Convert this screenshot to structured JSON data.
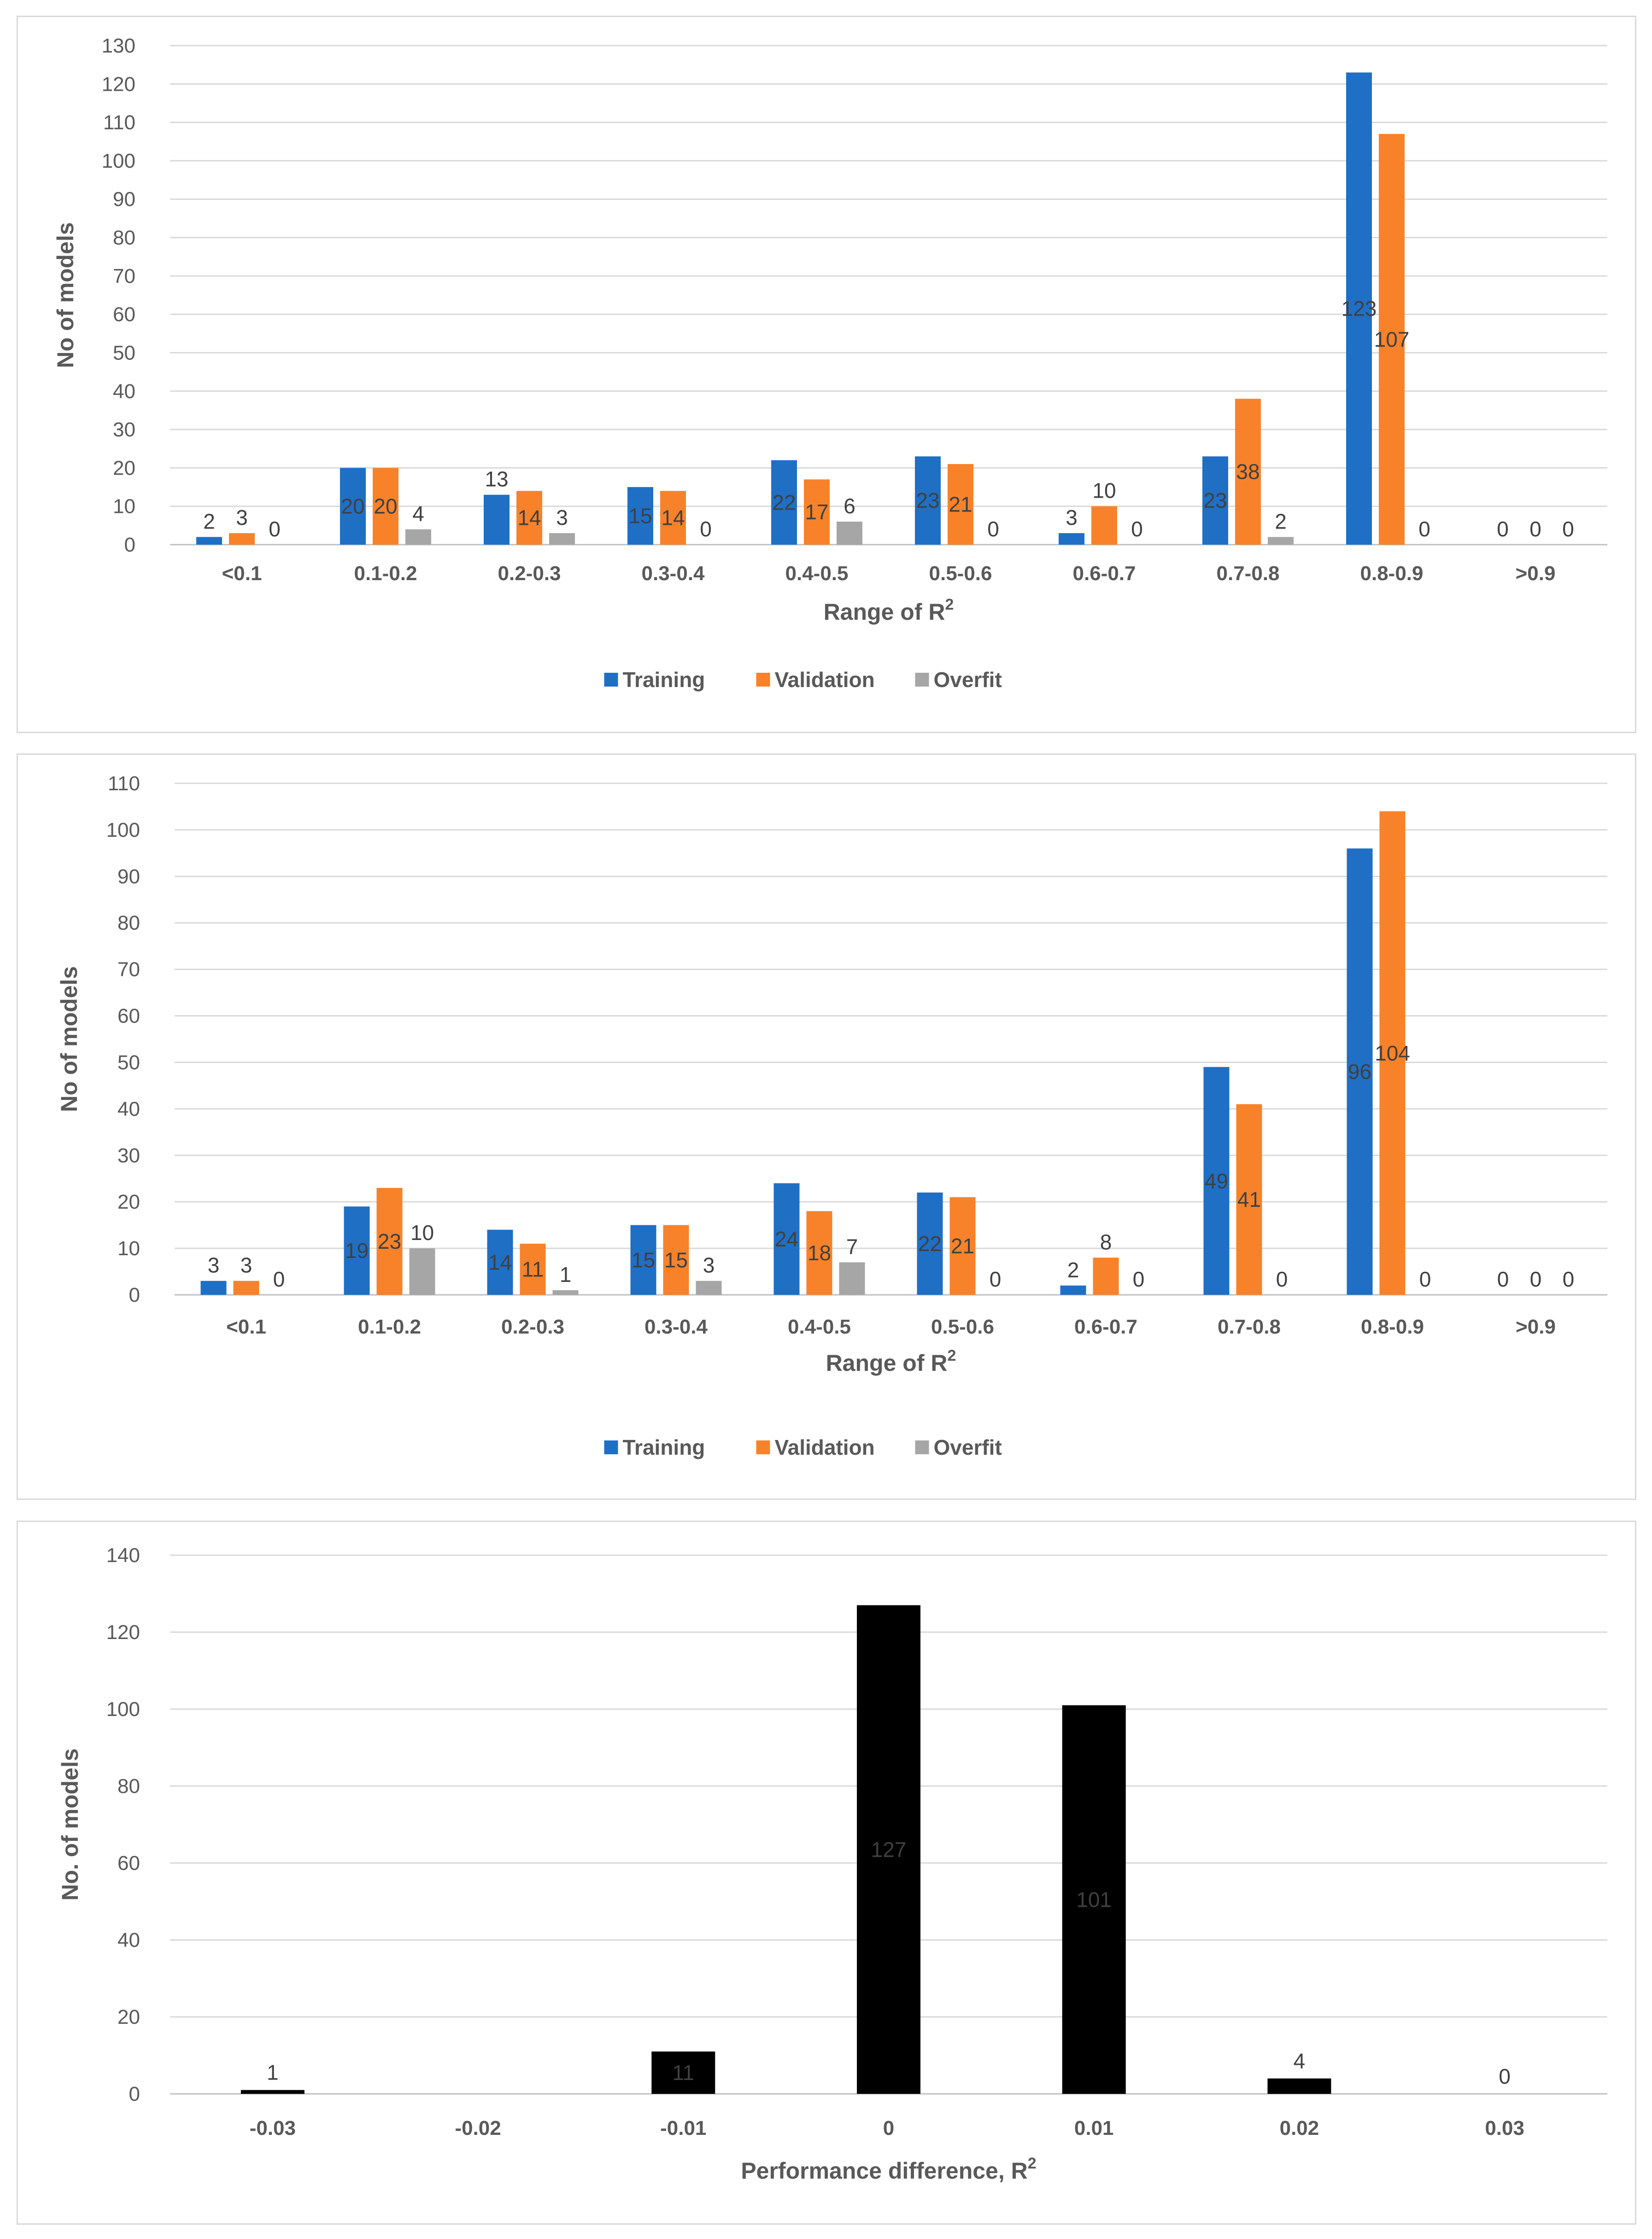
{
  "colors": {
    "training": "#1f6fc5",
    "validation": "#f7822a",
    "overfit": "#a6a6a6",
    "difference_bar": "#000000",
    "grid": "#d9d9d9",
    "text": "#595959"
  },
  "chart_data": [
    {
      "type": "bar",
      "title": "",
      "categories": [
        "<0.1",
        "0.1-0.2",
        "0.2-0.3",
        "0.3-0.4",
        "0.4-0.5",
        "0.5-0.6",
        "0.6-0.7",
        "0.7-0.8",
        "0.8-0.9",
        ">0.9"
      ],
      "series": [
        {
          "name": "Training",
          "values": [
            2,
            20,
            13,
            15,
            22,
            23,
            3,
            23,
            123,
            0
          ]
        },
        {
          "name": "Validation",
          "values": [
            3,
            20,
            14,
            14,
            17,
            21,
            10,
            38,
            107,
            0
          ]
        },
        {
          "name": "Overfit",
          "values": [
            0,
            4,
            3,
            0,
            6,
            0,
            0,
            2,
            0,
            0
          ]
        }
      ],
      "xlabel": "Range of R",
      "xlabel_sup": "2",
      "ylabel": "No of models",
      "ylim": [
        0,
        130
      ],
      "yticks": [
        0,
        10,
        20,
        30,
        40,
        50,
        60,
        70,
        80,
        90,
        100,
        110,
        120,
        130
      ],
      "legend": "bottom",
      "grid": true
    },
    {
      "type": "bar",
      "title": "",
      "categories": [
        "<0.1",
        "0.1-0.2",
        "0.2-0.3",
        "0.3-0.4",
        "0.4-0.5",
        "0.5-0.6",
        "0.6-0.7",
        "0.7-0.8",
        "0.8-0.9",
        ">0.9"
      ],
      "series": [
        {
          "name": "Training",
          "values": [
            3,
            19,
            14,
            15,
            24,
            22,
            2,
            49,
            96,
            0
          ]
        },
        {
          "name": "Validation",
          "values": [
            3,
            23,
            11,
            15,
            18,
            21,
            8,
            41,
            104,
            0
          ]
        },
        {
          "name": "Overfit",
          "values": [
            0,
            10,
            1,
            3,
            7,
            0,
            0,
            0,
            0,
            0
          ]
        }
      ],
      "xlabel": "Range of R",
      "xlabel_sup": "2",
      "ylabel": "No of models",
      "ylim": [
        0,
        110
      ],
      "yticks": [
        0,
        10,
        20,
        30,
        40,
        50,
        60,
        70,
        80,
        90,
        100,
        110
      ],
      "legend": "bottom",
      "grid": true
    },
    {
      "type": "bar",
      "title": "",
      "categories": [
        "-0.03",
        "-0.02",
        "-0.01",
        "0",
        "0.01",
        "0.02",
        "0.03"
      ],
      "series": [
        {
          "name": "No. of models",
          "values": [
            1,
            null,
            11,
            127,
            101,
            4,
            0
          ]
        }
      ],
      "xlabel": "Performance difference, R",
      "xlabel_sup": "2",
      "ylabel": "No. of models",
      "ylim": [
        0,
        140
      ],
      "yticks": [
        0,
        20,
        40,
        60,
        80,
        100,
        120,
        140
      ],
      "legend": "none",
      "grid": true
    }
  ]
}
